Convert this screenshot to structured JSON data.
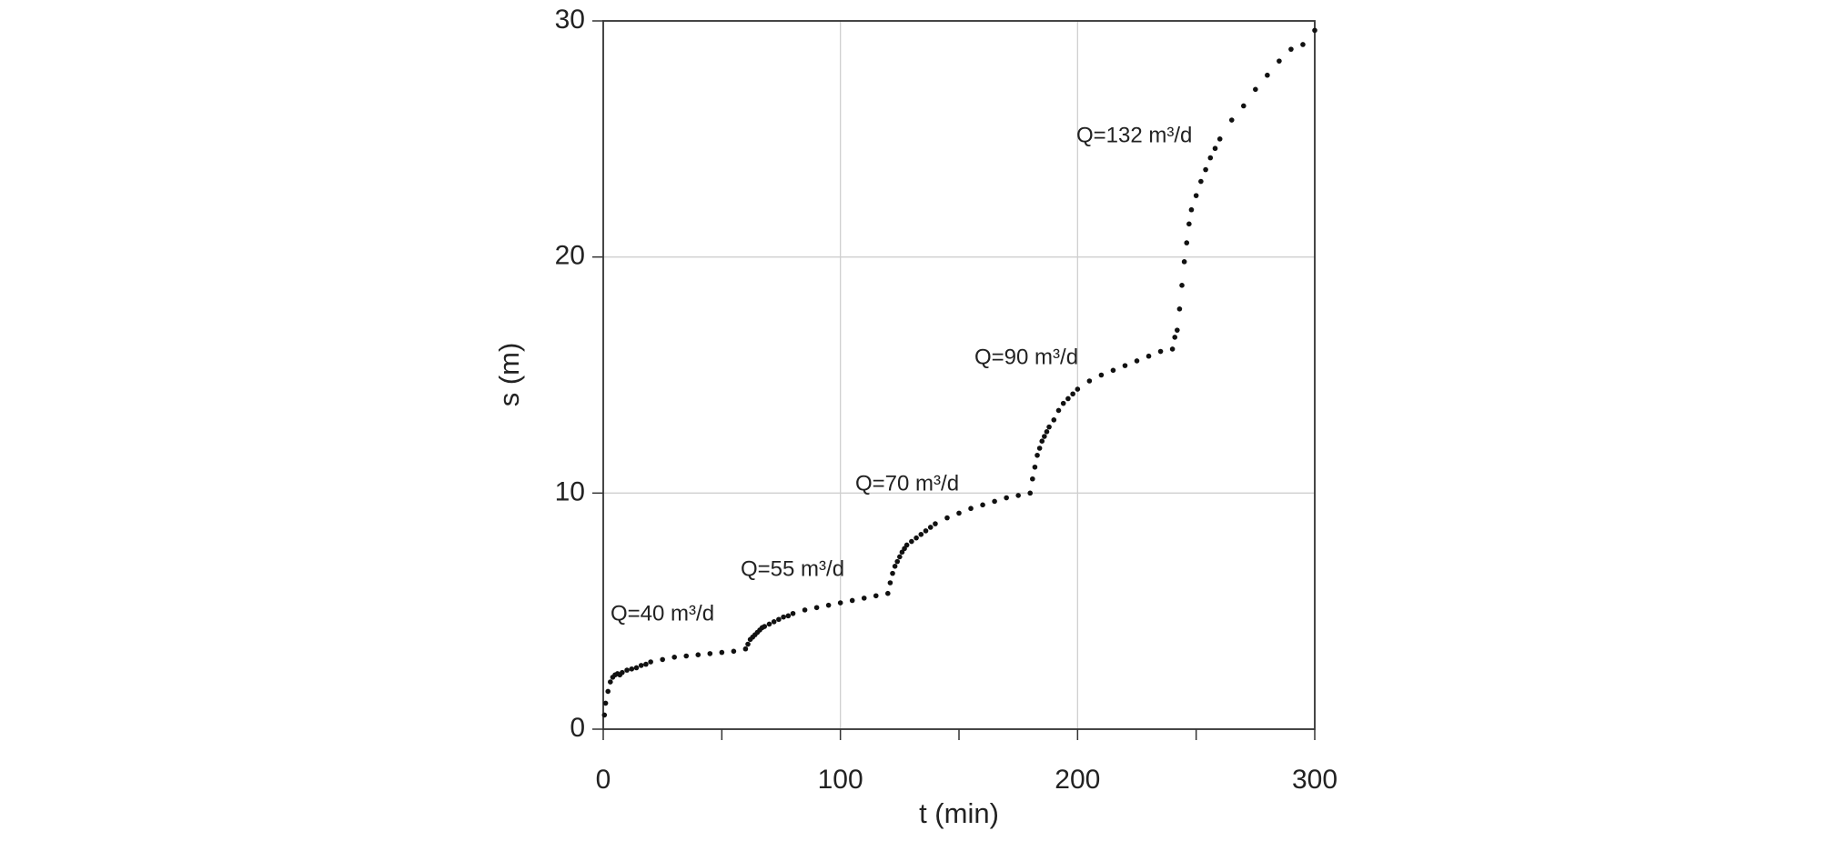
{
  "chart_data": {
    "type": "scatter",
    "x_label": "t (min)",
    "y_label": "s (m)",
    "xlim": [
      0,
      300
    ],
    "ylim": [
      0,
      30
    ],
    "xticks": [
      0,
      100,
      200,
      300
    ],
    "xminor_ticks": [
      50,
      150,
      250
    ],
    "yticks": [
      0,
      10,
      20,
      30
    ],
    "grid": true,
    "color": "#111111",
    "x": [
      0.5,
      1,
      2,
      3,
      4,
      5,
      6,
      7,
      8,
      10,
      12,
      14,
      16,
      18,
      20,
      25,
      30,
      35,
      40,
      45,
      50,
      55,
      60,
      61,
      62,
      63,
      64,
      65,
      66,
      67,
      68,
      70,
      72,
      74,
      76,
      78,
      80,
      85,
      90,
      95,
      100,
      105,
      110,
      115,
      120,
      121,
      122,
      123,
      124,
      125,
      126,
      127,
      128,
      130,
      132,
      134,
      136,
      138,
      140,
      145,
      150,
      155,
      160,
      165,
      170,
      175,
      180,
      181,
      182,
      183,
      184,
      185,
      186,
      187,
      188,
      190,
      192,
      194,
      196,
      198,
      200,
      205,
      210,
      215,
      220,
      225,
      230,
      235,
      240,
      241,
      242,
      243,
      244,
      245,
      246,
      247,
      248,
      250,
      252,
      254,
      256,
      258,
      260,
      265,
      270,
      275,
      280,
      285,
      290,
      295,
      300
    ],
    "values": [
      0.6,
      1.1,
      1.6,
      2.0,
      2.2,
      2.3,
      2.35,
      2.3,
      2.4,
      2.5,
      2.55,
      2.6,
      2.7,
      2.75,
      2.85,
      2.95,
      3.05,
      3.1,
      3.15,
      3.2,
      3.25,
      3.3,
      3.4,
      3.6,
      3.8,
      3.9,
      4.0,
      4.1,
      4.2,
      4.3,
      4.35,
      4.45,
      4.55,
      4.65,
      4.75,
      4.8,
      4.9,
      5.05,
      5.15,
      5.25,
      5.35,
      5.45,
      5.55,
      5.65,
      5.75,
      6.2,
      6.6,
      6.9,
      7.1,
      7.3,
      7.5,
      7.65,
      7.8,
      7.95,
      8.1,
      8.25,
      8.4,
      8.55,
      8.7,
      8.95,
      9.15,
      9.35,
      9.5,
      9.65,
      9.8,
      9.9,
      10.0,
      10.6,
      11.1,
      11.6,
      11.9,
      12.2,
      12.4,
      12.6,
      12.8,
      13.1,
      13.5,
      13.8,
      14.0,
      14.2,
      14.4,
      14.75,
      15.0,
      15.2,
      15.4,
      15.6,
      15.8,
      16.0,
      16.1,
      16.6,
      16.9,
      17.8,
      18.8,
      19.8,
      20.6,
      21.4,
      22.0,
      22.6,
      23.2,
      23.7,
      24.2,
      24.6,
      25.0,
      25.8,
      26.4,
      27.1,
      27.7,
      28.3,
      28.8,
      29.0,
      29.6
    ],
    "annotations": [
      "Q=40 m³/d",
      "Q=55 m³/d",
      "Q=70 m³/d",
      "Q=90 m³/d",
      "Q=132 m³/d"
    ]
  }
}
